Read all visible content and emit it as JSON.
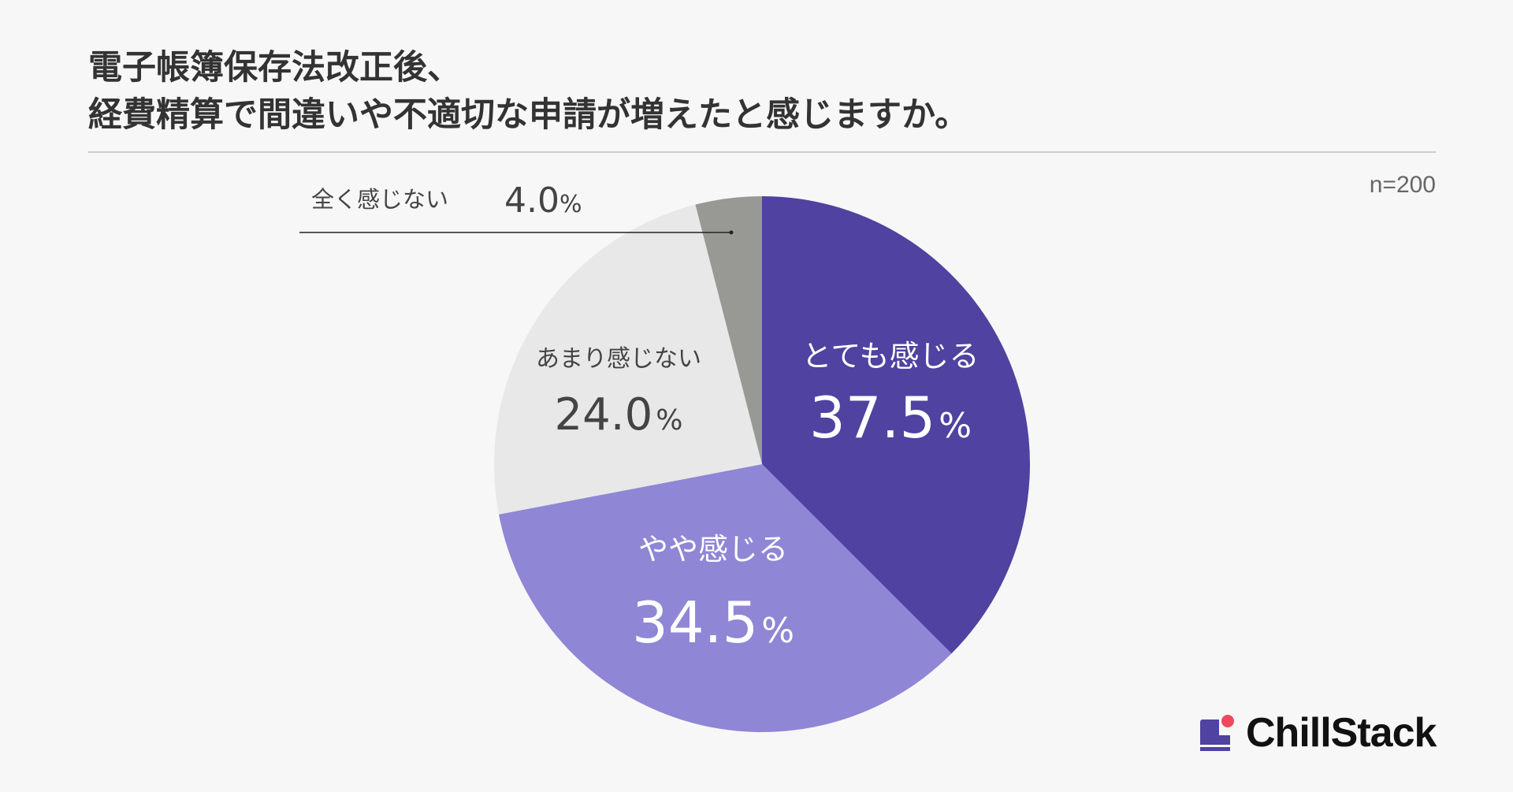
{
  "title": {
    "line1": "電子帳簿保存法改正後、",
    "line2": "経費精算で間違いや不適切な申請が増えたと感じますか。"
  },
  "sample_size": "n=200",
  "brand": {
    "name": "ChillStack",
    "colors": {
      "primary": "#4f42a0",
      "accent": "#ef4a5c"
    }
  },
  "chart_data": {
    "type": "pie",
    "unit": "%",
    "start_angle": "12 o'clock",
    "direction": "clockwise",
    "slices": [
      {
        "label": "とても感じる",
        "value": 37.5,
        "value_text": "37.5",
        "color": "#4f42a0",
        "text_color": "#ffffff"
      },
      {
        "label": "やや感じる",
        "value": 34.5,
        "value_text": "34.5",
        "color": "#8f86d6",
        "text_color": "#ffffff"
      },
      {
        "label": "あまり感じない",
        "value": 24.0,
        "value_text": "24.0",
        "color": "#e8e8e8",
        "text_color": "#444444"
      },
      {
        "label": "全く感じない",
        "value": 4.0,
        "value_text": "4.0",
        "color": "#989894",
        "text_color": "#444444"
      }
    ]
  }
}
